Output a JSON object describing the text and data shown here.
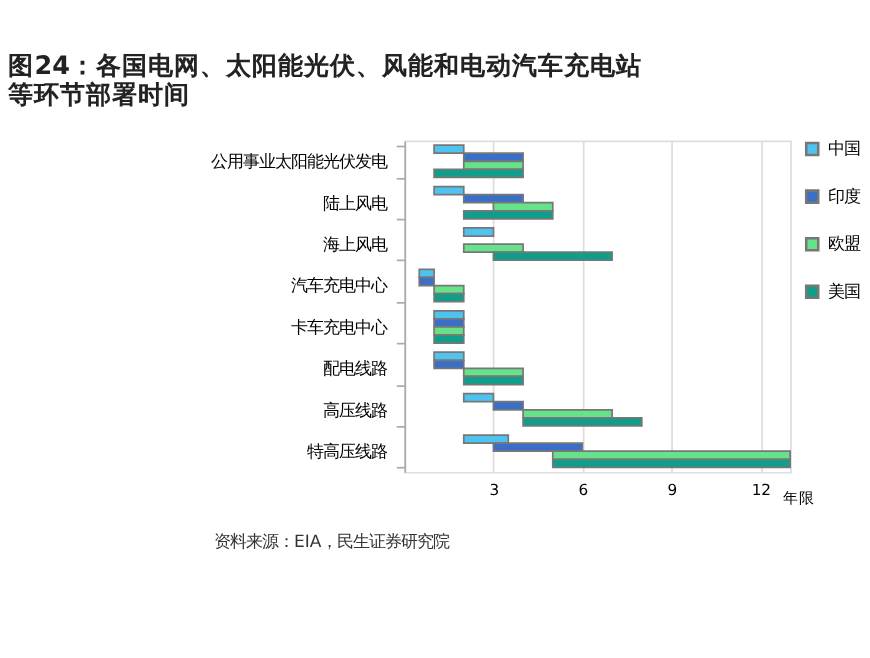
{
  "chart_data": {
    "type": "bar",
    "orientation": "horizontal",
    "title": "图24：各国电网、太阳能光伏、风能和电动汽车充电站等环节部署时间",
    "categories": [
      "公用事业太阳能光伏发电",
      "陆上风电",
      "海上风电",
      "汽车充电中心",
      "卡车充电中心",
      "配电线路",
      "高压线路",
      "特高压线路"
    ],
    "series": [
      {
        "name": "中国",
        "color": "#4fc3f0",
        "base": [
          1,
          1,
          2,
          0.5,
          1,
          1,
          2,
          2
        ],
        "values": [
          1,
          1,
          1,
          0.5,
          1,
          1,
          1,
          1.5
        ]
      },
      {
        "name": "印度",
        "color": "#3a6fc8",
        "base": [
          2,
          2,
          null,
          0.5,
          1,
          1,
          3,
          3
        ],
        "values": [
          2,
          2,
          null,
          0.5,
          1,
          1,
          1,
          3
        ]
      },
      {
        "name": "欧盟",
        "color": "#66e38a",
        "base": [
          2,
          3,
          2,
          1,
          1,
          2,
          4,
          5
        ],
        "values": [
          2,
          2,
          2,
          1,
          1,
          2,
          3,
          8
        ]
      },
      {
        "name": "美国",
        "color": "#0e9e8a",
        "base": [
          1,
          2,
          3,
          1,
          1,
          2,
          4,
          5
        ],
        "values": [
          3,
          3,
          4,
          1,
          1,
          2,
          4,
          8
        ]
      }
    ],
    "xlabel": "年限",
    "xlim": [
      0,
      13
    ],
    "xticks": [
      3,
      6,
      9,
      12
    ],
    "grid": "x",
    "legend": "top right",
    "annotations": [
      "资料来源：EIA，民生证券研究院"
    ]
  }
}
